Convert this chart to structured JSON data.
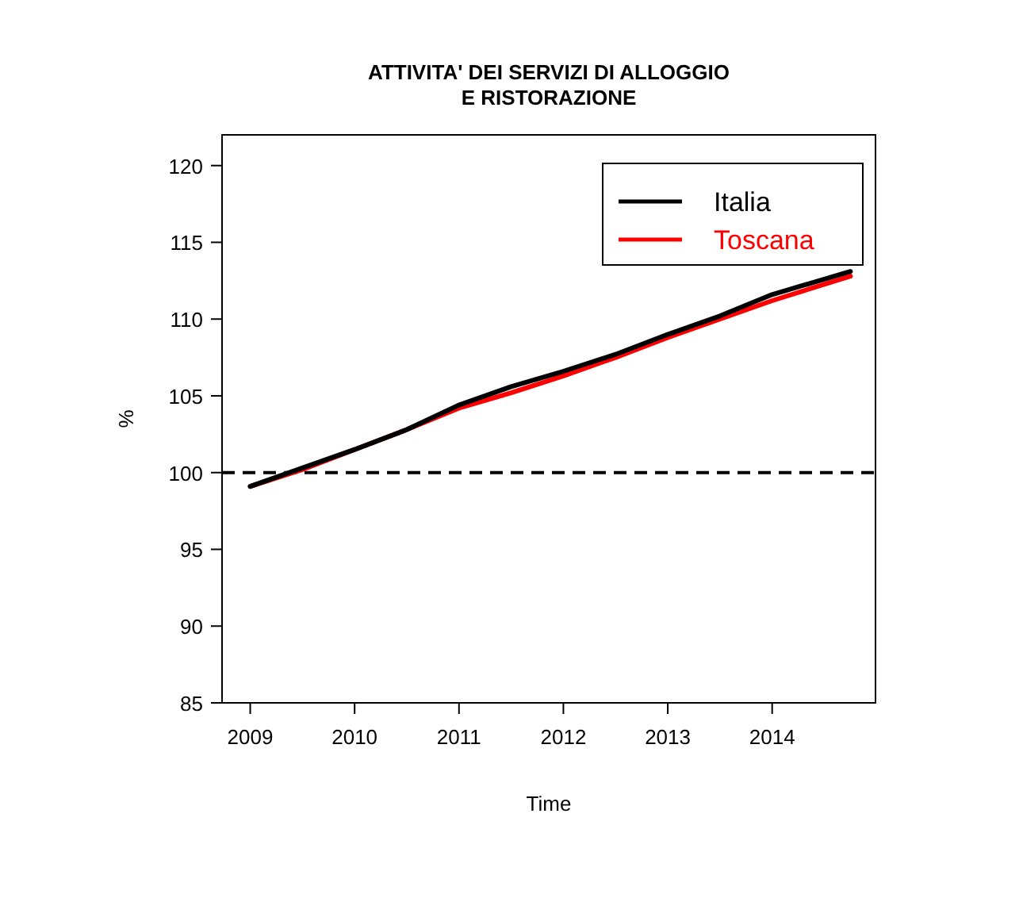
{
  "chart_data": {
    "type": "line",
    "title": "ATTIVITA' DEI SERVIZI DI ALLOGGIO\nE RISTORAZIONE",
    "xlabel": "Time",
    "ylabel": "%",
    "x": [
      2009,
      2009.5,
      2010,
      2010.5,
      2011,
      2011.5,
      2012,
      2012.5,
      2013,
      2013.5,
      2014,
      2014.75
    ],
    "series": [
      {
        "name": "Italia",
        "color": "#000000",
        "values": [
          99.1,
          100.3,
          101.5,
          102.8,
          104.4,
          105.6,
          106.6,
          107.7,
          109.0,
          110.2,
          111.6,
          113.1
        ]
      },
      {
        "name": "Toscana",
        "color": "#ff0000",
        "values": [
          99.1,
          100.2,
          101.5,
          102.8,
          104.2,
          105.2,
          106.3,
          107.5,
          108.8,
          110.0,
          111.2,
          112.8
        ]
      }
    ],
    "xlim": [
      2008.73,
      2014.99
    ],
    "xticks": [
      2009,
      2010,
      2011,
      2012,
      2013,
      2014
    ],
    "ylim": [
      85,
      122
    ],
    "yticks": [
      85,
      90,
      95,
      100,
      105,
      110,
      115,
      120
    ],
    "ref_lines": [
      {
        "axis": "y",
        "value": 100,
        "color": "#000000",
        "line_style": "dashed"
      }
    ],
    "grid": false,
    "legend": "top right",
    "line_style": "solid",
    "marker": "none"
  }
}
